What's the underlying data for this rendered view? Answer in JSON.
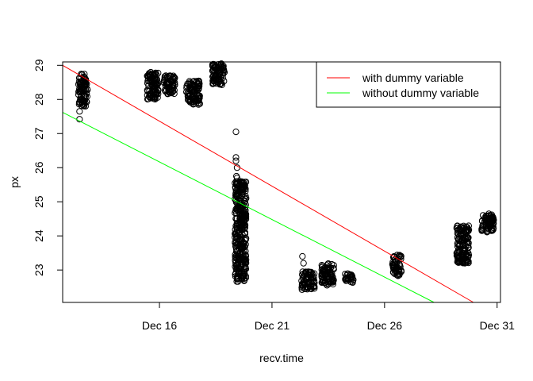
{
  "chart_data": {
    "type": "scatter",
    "xlabel": "recv.time",
    "ylabel": "px",
    "xlim": [
      11.7,
      31.15
    ],
    "ylim": [
      22.05,
      29.1
    ],
    "x_ticks": [
      {
        "value": 16,
        "label": "Dec 16"
      },
      {
        "value": 21,
        "label": "Dec 21"
      },
      {
        "value": 26,
        "label": "Dec 26"
      },
      {
        "value": 31,
        "label": "Dec 31"
      }
    ],
    "y_ticks": [
      23,
      24,
      25,
      26,
      27,
      28,
      29
    ],
    "grid": false,
    "legend_position": "top-right",
    "series": [
      {
        "name": "with dummy variable",
        "type": "line",
        "color": "#ff0000",
        "x": [
          11.7,
          29.95
        ],
        "y": [
          29.0,
          22.05
        ]
      },
      {
        "name": "without dummy variable",
        "type": "line",
        "color": "#00ff00",
        "x": [
          11.7,
          28.2
        ],
        "y": [
          27.62,
          22.05
        ]
      }
    ],
    "scatter_clusters": [
      {
        "x": [
          12.4,
          12.8
        ],
        "y": [
          27.8,
          28.75
        ],
        "outliers": [
          [
            12.45,
            27.42
          ],
          [
            12.45,
            27.65
          ]
        ]
      },
      {
        "x": [
          15.45,
          15.95
        ],
        "y": [
          28.0,
          28.8
        ],
        "outliers": []
      },
      {
        "x": [
          16.2,
          16.7
        ],
        "y": [
          28.15,
          28.7
        ],
        "outliers": []
      },
      {
        "x": [
          17.2,
          17.8
        ],
        "y": [
          27.85,
          28.55
        ],
        "outliers": []
      },
      {
        "x": [
          18.35,
          18.9
        ],
        "y": [
          28.4,
          29.05
        ],
        "outliers": [
          [
            18.45,
            28.92
          ]
        ]
      },
      {
        "x": [
          19.35,
          19.85
        ],
        "y": [
          22.65,
          25.6
        ],
        "outliers": [
          [
            19.4,
            27.05
          ],
          [
            19.4,
            26.3
          ],
          [
            19.4,
            26.2
          ],
          [
            19.45,
            26.0
          ],
          [
            19.42,
            25.75
          ],
          [
            19.45,
            25.7
          ]
        ]
      },
      {
        "x": [
          22.3,
          22.9
        ],
        "y": [
          22.42,
          22.95
        ],
        "outliers": [
          [
            22.35,
            23.4
          ],
          [
            22.4,
            23.2
          ]
        ]
      },
      {
        "x": [
          23.2,
          23.75
        ],
        "y": [
          22.55,
          23.2
        ],
        "outliers": []
      },
      {
        "x": [
          24.25,
          24.65
        ],
        "y": [
          22.62,
          22.92
        ],
        "outliers": []
      },
      {
        "x": [
          26.35,
          26.75
        ],
        "y": [
          22.85,
          23.45
        ],
        "outliers": [
          [
            26.6,
            22.83
          ]
        ]
      },
      {
        "x": [
          29.2,
          29.75
        ],
        "y": [
          23.2,
          24.3
        ],
        "outliers": []
      },
      {
        "x": [
          30.3,
          30.85
        ],
        "y": [
          24.1,
          24.65
        ],
        "outliers": []
      }
    ]
  }
}
